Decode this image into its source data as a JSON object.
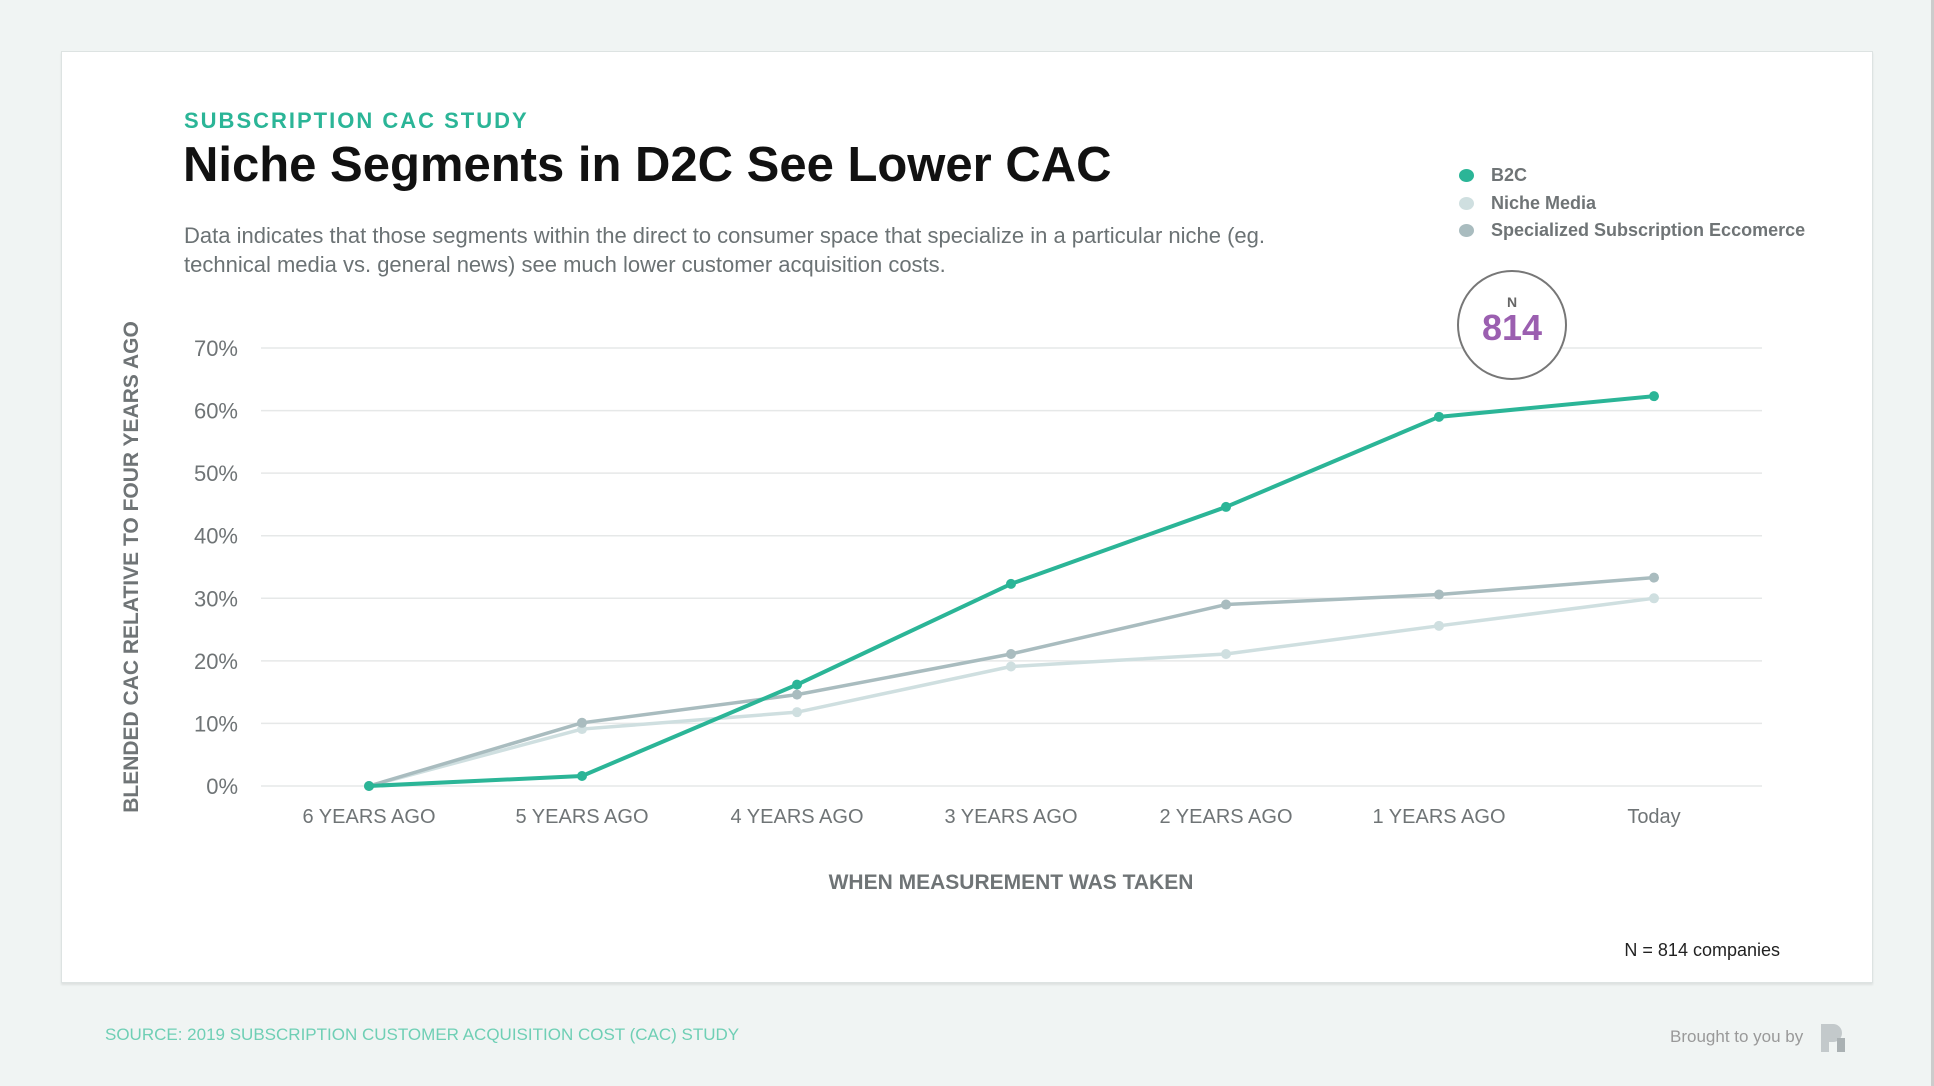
{
  "header": {
    "kicker": "SUBSCRIPTION CAC STUDY",
    "title": "Niche Segments in D2C See Lower CAC",
    "description": "Data indicates that those segments within the direct to consumer space that specialize in a particular niche (eg. technical media vs. general news) see much lower customer acquisition costs."
  },
  "badge": {
    "label": "N",
    "value": "814"
  },
  "note": "N = 814 companies",
  "footer": {
    "source": "SOURCE: 2019 SUBSCRIPTION CUSTOMER ACQUISITION COST (CAC) STUDY",
    "brought": "Brought to you by",
    "logo_icon": "profitwell-logo-icon"
  },
  "chart_data": {
    "type": "line",
    "xlabel": "WHEN MEASUREMENT WAS TAKEN",
    "ylabel": "BLENDED CAC RELATIVE TO FOUR YEARS AGO",
    "categories": [
      "6 YEARS AGO",
      "5 YEARS AGO",
      "4 YEARS AGO",
      "3 YEARS AGO",
      "2 YEARS AGO",
      "1 YEARS AGO",
      "Today"
    ],
    "ylim": [
      0,
      70
    ],
    "yticks": [
      "0%",
      "10%",
      "20%",
      "30%",
      "40%",
      "50%",
      "60%",
      "70%"
    ],
    "grid": true,
    "legend": "top-right",
    "series": [
      {
        "name": "B2C",
        "color": "#2bb597",
        "values": [
          0,
          1.6,
          16.2,
          32.3,
          44.6,
          59,
          62.3
        ]
      },
      {
        "name": "Niche Media",
        "color": "#cfdfe0",
        "values": [
          0,
          9.1,
          11.8,
          19.1,
          21.1,
          25.6,
          30
        ]
      },
      {
        "name": "Specialized Subscription Eccomerce",
        "color": "#a9bcbf",
        "values": [
          0,
          10.1,
          14.6,
          21.1,
          29,
          30.6,
          33.3
        ]
      }
    ]
  }
}
